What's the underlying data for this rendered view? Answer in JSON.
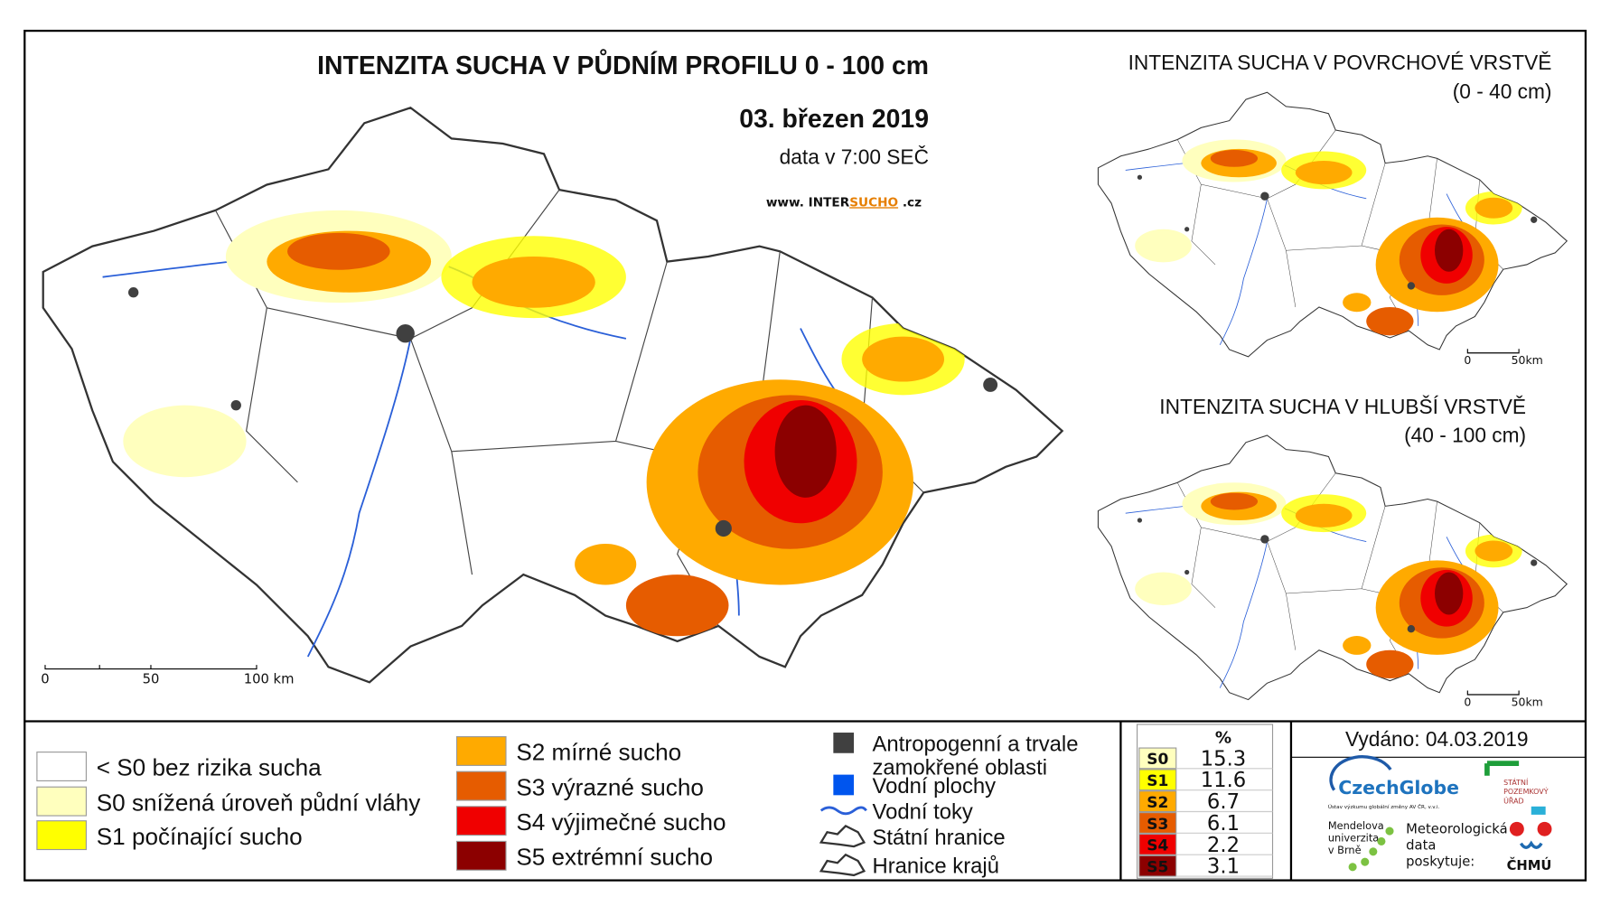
{
  "main_map": {
    "title": "INTENZITA SUCHA V PŮDNÍM PROFILU 0 - 100 cm",
    "date": "03. březen 2019",
    "data_time": "data v 7:00 SEČ",
    "website": [
      "www. INTER",
      "SUCHO",
      " .cz"
    ],
    "scale_labels": [
      "0",
      "50",
      "100 km"
    ]
  },
  "surface_map": {
    "title": "INTENZITA SUCHA V POVRCHOVÉ VRSTVĚ",
    "subtitle": "(0 - 40 cm)",
    "scale_labels": [
      "0",
      "50km"
    ]
  },
  "deep_map": {
    "title": "INTENZITA SUCHA V HLUBŠÍ VRSTVĚ",
    "subtitle": "(40 - 100 cm)",
    "scale_labels": [
      "0",
      "50km"
    ]
  },
  "legend": {
    "drought_classes": [
      {
        "label": "< S0 bez rizika sucha",
        "color": "#ffffff"
      },
      {
        "label": "S0 snížená úroveň půdní vláhy",
        "color": "#ffffbe"
      },
      {
        "label": "S1 počínající sucho",
        "color": "#ffff00"
      },
      {
        "label": "S2 mírné sucho",
        "color": "#ffaa00"
      },
      {
        "label": "S3 výrazné sucho",
        "color": "#e65c00"
      },
      {
        "label": "S4 výjimečné sucho",
        "color": "#f00000"
      },
      {
        "label": "S5 extrémní sucho",
        "color": "#8c0000"
      }
    ],
    "features": [
      {
        "label": "Antropogenní a trvale",
        "label2": "zamokřené oblasti",
        "color": "#404040"
      },
      {
        "label": "Vodní plochy",
        "color": "#0055ee"
      },
      {
        "label": "Vodní toky",
        "color": "#2a5fd8"
      },
      {
        "label": "Státní hranice",
        "color": "#333333"
      },
      {
        "label": "Hranice krajů",
        "color": "#333333"
      }
    ]
  },
  "stats_table": {
    "header": "%",
    "rows": [
      [
        "S0",
        15.3
      ],
      [
        "S1",
        11.6
      ],
      [
        "S2",
        6.7
      ],
      [
        "S3",
        6.1
      ],
      [
        "S4",
        2.2
      ],
      [
        "S5",
        3.1
      ]
    ]
  },
  "issued": "Vydáno: 04.03.2019",
  "logos": {
    "czechglobe": "CzechGlobe",
    "czechglobe_sub": "Ústav výzkumu globální změny AV ČR, v.v.i.",
    "spu": [
      "STÁTNÍ",
      "POZEMKOVÝ",
      "ÚŘAD"
    ],
    "mendel": [
      "Mendelova",
      "univerzita",
      "v Brně"
    ],
    "chmu_text": [
      "Meteorologická",
      "data",
      "poskytuje:"
    ],
    "chmu": "ČHMÚ"
  }
}
